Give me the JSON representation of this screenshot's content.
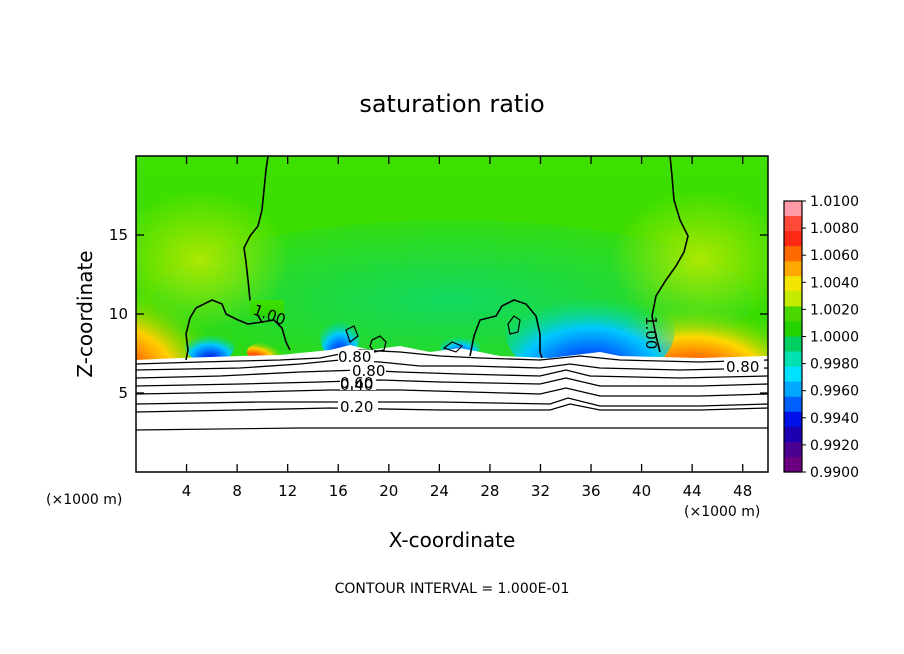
{
  "chart_data": {
    "type": "heatmap",
    "title": "saturation ratio",
    "xlabel": "X-coordinate",
    "ylabel": "Z-coordinate",
    "x_unit_left": "(×1000 m)",
    "x_unit_right": "(×1000 m)",
    "footer": "CONTOUR INTERVAL = 1.000E-01",
    "xlim": [
      0,
      50
    ],
    "ylim": [
      0,
      20
    ],
    "x_ticks": [
      "4",
      "8",
      "12",
      "16",
      "20",
      "24",
      "28",
      "32",
      "36",
      "40",
      "44",
      "48"
    ],
    "y_ticks": [
      "5",
      "10",
      "15"
    ],
    "colorbar": {
      "levels": [
        "1.0100",
        "1.0080",
        "1.0060",
        "1.0040",
        "1.0020",
        "1.0000",
        "0.9980",
        "0.9960",
        "0.9940",
        "0.9920",
        "0.9900"
      ],
      "colors": [
        "#ff9aa6",
        "#ff4a3a",
        "#ff2a14",
        "#ff6a00",
        "#ffa800",
        "#f2e600",
        "#c4ea00",
        "#4ad800",
        "#24d200",
        "#00d060",
        "#00e0b0",
        "#00e0ff",
        "#00a8ff",
        "#0060ff",
        "#0010e8",
        "#1a00b0",
        "#4a0090",
        "#6a0080"
      ]
    },
    "contour_labels": [
      "1.00",
      "1.00",
      "0.80",
      "0.80",
      "0.60",
      "0.40",
      "0.20",
      "0.80"
    ]
  }
}
